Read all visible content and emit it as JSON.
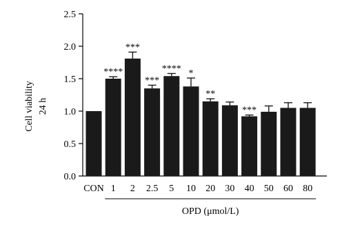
{
  "chart_data": {
    "type": "bar",
    "categories": [
      "CON",
      "1",
      "2",
      "2.5",
      "5",
      "10",
      "20",
      "30",
      "40",
      "50",
      "60",
      "80"
    ],
    "values": [
      1.0,
      1.5,
      1.81,
      1.35,
      1.54,
      1.38,
      1.15,
      1.09,
      0.92,
      0.99,
      1.05,
      1.05
    ],
    "errors": [
      0.0,
      0.03,
      0.1,
      0.05,
      0.04,
      0.13,
      0.04,
      0.05,
      0.02,
      0.09,
      0.08,
      0.08
    ],
    "significance": [
      "",
      "****",
      "***",
      "***",
      "****",
      "*",
      "**",
      "",
      "***",
      "",
      "",
      ""
    ],
    "ylabel_line1": "Cell viability",
    "ylabel_line2": "24 h",
    "xgroup_label": "OPD (μmol/L)",
    "xgroup_span": [
      "1",
      "80"
    ],
    "ylim": [
      0.0,
      2.5
    ],
    "yticks": [
      "0.0",
      "0.5",
      "1.0",
      "1.5",
      "2.0",
      "2.5"
    ],
    "bar_color": "#1a1a1a",
    "grid": false,
    "legend": "none"
  }
}
